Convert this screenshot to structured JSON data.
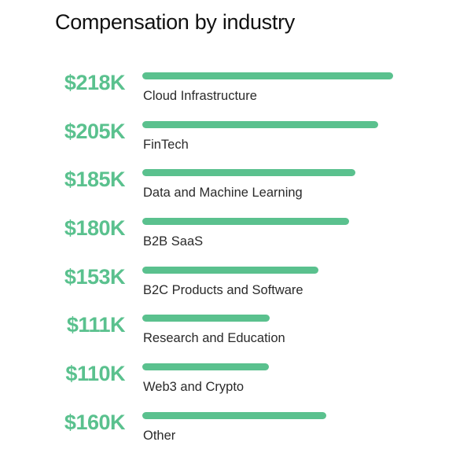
{
  "chart_data": {
    "type": "bar",
    "orientation": "horizontal",
    "title": "Compensation by industry",
    "xlabel": "",
    "ylabel": "",
    "grid": false,
    "legend": "none",
    "xlim": [
      0,
      218
    ],
    "categories": [
      "Cloud Infrastructure",
      "FinTech",
      "Data and Machine Learning",
      "B2B SaaS",
      "B2C Products and Software",
      "Research and Education",
      "Web3 and Crypto",
      "Other"
    ],
    "values": [
      218,
      205,
      185,
      180,
      153,
      111,
      110,
      160
    ],
    "value_labels": [
      "$218K",
      "$205K",
      "$185K",
      "$180K",
      "$153K",
      "$111K",
      "$110K",
      "$160K"
    ],
    "colors": {
      "bar": "#5ac18e",
      "value_text": "#5ac18e"
    }
  }
}
